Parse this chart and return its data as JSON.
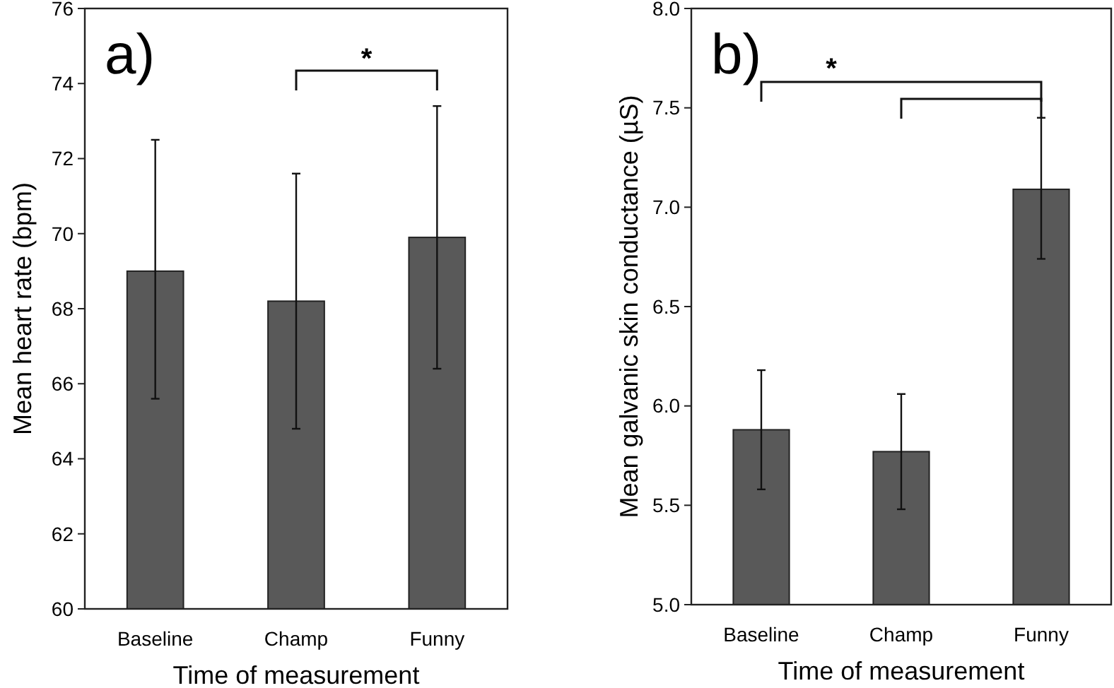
{
  "chart_data": [
    {
      "type": "bar",
      "title": "a)",
      "xlabel": "Time of measurement",
      "ylabel": "Mean heart rate (bpm)",
      "categories": [
        "Baseline",
        "Champ",
        "Funny"
      ],
      "values": [
        69.0,
        68.2,
        69.9
      ],
      "errors": [
        [
          65.6,
          72.5
        ],
        [
          64.8,
          71.6
        ],
        [
          66.4,
          73.4
        ]
      ],
      "color": "#595959",
      "ylim": [
        60,
        76
      ],
      "yticks": [
        60,
        62,
        64,
        66,
        68,
        70,
        72,
        74,
        76
      ],
      "grid": false,
      "annotations": [
        "*"
      ]
    },
    {
      "type": "bar",
      "title": "b)",
      "xlabel": "Time of measurement",
      "ylabel": "Mean galvanic skin conductance (µS)",
      "categories": [
        "Baseline",
        "Champ",
        "Funny"
      ],
      "values": [
        5.88,
        5.77,
        7.09
      ],
      "errors": [
        [
          5.58,
          6.18
        ],
        [
          5.48,
          6.06
        ],
        [
          6.74,
          7.45
        ]
      ],
      "color": "#595959",
      "ylim": [
        5.0,
        8.0
      ],
      "yticks": [
        {
          "value": 5,
          "label": "5.0"
        },
        {
          "value": 5.5,
          "label": "5.5"
        },
        {
          "value": 6,
          "label": "6.0"
        },
        {
          "value": 6.5,
          "label": "6.5"
        },
        {
          "value": 7,
          "label": "7.0"
        },
        {
          "value": 7.5,
          "label": "7.5"
        },
        {
          "value": 8,
          "label": "8.0"
        }
      ],
      "grid": false,
      "annotations": [
        "*"
      ]
    }
  ]
}
